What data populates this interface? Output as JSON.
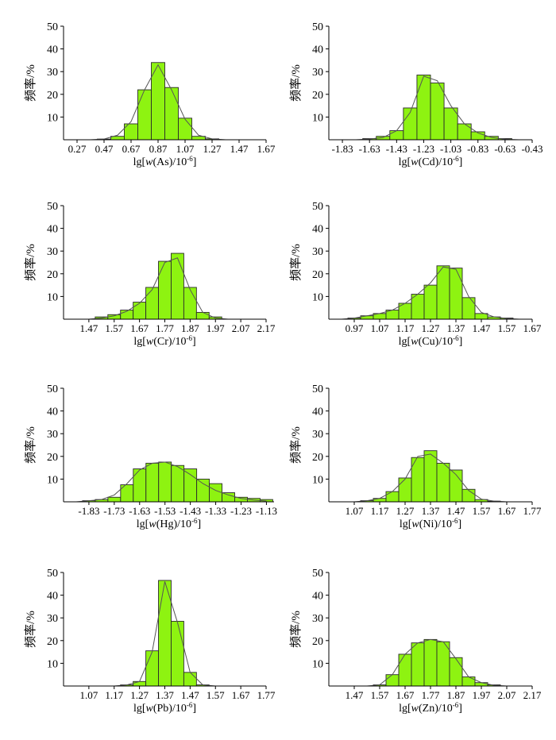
{
  "figure": {
    "panel_count": 8
  },
  "chart_data": [
    {
      "type": "bar",
      "ylabel": "频率/%",
      "xlabel_prefix": "lg[",
      "xlabel_italic": "w",
      "xlabel_element": "(As)/10",
      "xlabel_exp": "-6",
      "xlabel_suffix": "]",
      "ylim": [
        0,
        50
      ],
      "yticks": [
        10,
        20,
        30,
        40,
        50
      ],
      "xlim": [
        0.17,
        1.67
      ],
      "xticks": [
        "0.27",
        "0.47",
        "0.67",
        "0.87",
        "1.07",
        "1.27",
        "1.47",
        "1.67"
      ],
      "bin_width": 0.1,
      "bin_centers": [
        0.47,
        0.57,
        0.67,
        0.77,
        0.87,
        0.97,
        1.07,
        1.17,
        1.27
      ],
      "values": [
        0.3,
        1.5,
        7,
        22,
        34,
        23,
        9.5,
        1.5,
        0.4
      ],
      "curve_x": [
        0.37,
        0.47,
        0.57,
        0.67,
        0.77,
        0.87,
        0.97,
        1.07,
        1.17,
        1.27,
        1.37
      ],
      "curve_y": [
        0,
        0.3,
        2,
        8,
        22,
        33,
        22,
        9,
        2,
        0.4,
        0
      ],
      "colors": {
        "bar": "#8ef311",
        "edge": "#2a2a2a",
        "line": "#555555"
      }
    },
    {
      "type": "bar",
      "ylabel": "频率/%",
      "xlabel_prefix": "lg[",
      "xlabel_italic": "w",
      "xlabel_element": "(Cd)/10",
      "xlabel_exp": "-6",
      "xlabel_suffix": "]",
      "ylim": [
        0,
        50
      ],
      "yticks": [
        10,
        20,
        30,
        40,
        50
      ],
      "xlim": [
        -1.93,
        -0.43
      ],
      "xticks": [
        "-1.83",
        "-1.63",
        "-1.43",
        "-1.23",
        "-1.03",
        "-0.83",
        "-0.63",
        "-0.43"
      ],
      "bin_width": 0.1,
      "bin_centers": [
        -1.63,
        -1.53,
        -1.43,
        -1.33,
        -1.23,
        -1.13,
        -1.03,
        -0.93,
        -0.83,
        -0.73,
        -0.63
      ],
      "values": [
        0.5,
        1.5,
        4,
        14,
        28.5,
        25,
        14,
        7,
        3.5,
        1.5,
        0.5
      ],
      "curve_x": [
        -1.73,
        -1.63,
        -1.53,
        -1.43,
        -1.33,
        -1.23,
        -1.13,
        -1.03,
        -0.93,
        -0.83,
        -0.73,
        -0.63,
        -0.53
      ],
      "curve_y": [
        0,
        0.3,
        1,
        4,
        12,
        28,
        26,
        15,
        7,
        3,
        1,
        0.2,
        0
      ],
      "colors": {
        "bar": "#8ef311",
        "edge": "#2a2a2a",
        "line": "#555555"
      }
    },
    {
      "type": "bar",
      "ylabel": "频率/%",
      "xlabel_prefix": "lg[",
      "xlabel_italic": "w",
      "xlabel_element": "(Cr)/10",
      "xlabel_exp": "-6",
      "xlabel_suffix": "]",
      "ylim": [
        0,
        50
      ],
      "yticks": [
        10,
        20,
        30,
        40,
        50
      ],
      "xlim": [
        1.37,
        2.17
      ],
      "xticks": [
        "1.47",
        "1.57",
        "1.67",
        "1.77",
        "1.87",
        "1.97",
        "2.07",
        "2.17"
      ],
      "bin_width": 0.05,
      "bin_centers": [
        1.52,
        1.57,
        1.62,
        1.67,
        1.72,
        1.77,
        1.82,
        1.87,
        1.92,
        1.97
      ],
      "values": [
        1,
        2,
        4,
        7.5,
        14,
        25.5,
        29,
        14,
        3,
        1
      ],
      "curve_x": [
        1.47,
        1.52,
        1.57,
        1.62,
        1.67,
        1.72,
        1.77,
        1.82,
        1.87,
        1.92,
        1.97,
        2.02
      ],
      "curve_y": [
        0,
        0.5,
        1.5,
        3.5,
        7,
        13,
        25,
        27,
        13,
        3,
        0.5,
        0
      ],
      "colors": {
        "bar": "#8ef311",
        "edge": "#2a2a2a",
        "line": "#555555"
      }
    },
    {
      "type": "bar",
      "ylabel": "频率/%",
      "xlabel_prefix": "lg[",
      "xlabel_italic": "w",
      "xlabel_element": "(Cu)/10",
      "xlabel_exp": "-6",
      "xlabel_suffix": "]",
      "ylim": [
        0,
        50
      ],
      "yticks": [
        10,
        20,
        30,
        40,
        50
      ],
      "xlim": [
        0.87,
        1.67
      ],
      "xticks": [
        "0.97",
        "1.07",
        "1.17",
        "1.27",
        "1.37",
        "1.47",
        "1.57",
        "1.67"
      ],
      "bin_width": 0.05,
      "bin_centers": [
        0.97,
        1.02,
        1.07,
        1.12,
        1.17,
        1.22,
        1.27,
        1.32,
        1.37,
        1.42,
        1.47,
        1.52,
        1.57
      ],
      "values": [
        0.5,
        1.5,
        2.5,
        4,
        7,
        11,
        15,
        23.5,
        22.5,
        9.5,
        2.5,
        1,
        0.5
      ],
      "curve_x": [
        0.92,
        0.97,
        1.02,
        1.07,
        1.12,
        1.17,
        1.22,
        1.27,
        1.32,
        1.37,
        1.42,
        1.47,
        1.52,
        1.57,
        1.62
      ],
      "curve_y": [
        0,
        0.5,
        1.5,
        2.5,
        4,
        7,
        11,
        16,
        23,
        22,
        10,
        3,
        1,
        0.3,
        0
      ],
      "colors": {
        "bar": "#8ef311",
        "edge": "#2a2a2a",
        "line": "#555555"
      }
    },
    {
      "type": "bar",
      "ylabel": "频率/%",
      "xlabel_prefix": "lg[",
      "xlabel_italic": "w",
      "xlabel_element": "(Hg)/10",
      "xlabel_exp": "-6",
      "xlabel_suffix": "]",
      "ylim": [
        0,
        50
      ],
      "yticks": [
        10,
        20,
        30,
        40,
        50
      ],
      "xlim": [
        -1.93,
        -1.1
      ],
      "xticks": [
        "-1.83",
        "-1.73",
        "-1.63",
        "-1.53",
        "-1.43",
        "-1.33",
        "-1.23",
        "-1.13"
      ],
      "bin_width": 0.05,
      "bin_centers": [
        -1.83,
        -1.78,
        -1.73,
        -1.68,
        -1.63,
        -1.58,
        -1.53,
        -1.48,
        -1.43,
        -1.38,
        -1.33,
        -1.28,
        -1.23,
        -1.18,
        -1.13
      ],
      "values": [
        0.5,
        1,
        2,
        7.5,
        14.5,
        17,
        17.5,
        16,
        14.5,
        10,
        8,
        4,
        2,
        1.5,
        1
      ],
      "curve_x": [
        -1.88,
        -1.83,
        -1.78,
        -1.73,
        -1.68,
        -1.63,
        -1.58,
        -1.53,
        -1.48,
        -1.43,
        -1.38,
        -1.33,
        -1.28,
        -1.23,
        -1.18,
        -1.13
      ],
      "curve_y": [
        0,
        0.5,
        1,
        3,
        8,
        14,
        17,
        17.5,
        15.5,
        12,
        8,
        5,
        3,
        1.5,
        0.8,
        0.3
      ],
      "colors": {
        "bar": "#8ef311",
        "edge": "#2a2a2a",
        "line": "#555555"
      }
    },
    {
      "type": "bar",
      "ylabel": "频率/%",
      "xlabel_prefix": "lg[",
      "xlabel_italic": "w",
      "xlabel_element": "(Ni)/10",
      "xlabel_exp": "-6",
      "xlabel_suffix": "]",
      "ylim": [
        0,
        50
      ],
      "yticks": [
        10,
        20,
        30,
        40,
        50
      ],
      "xlim": [
        0.97,
        1.77
      ],
      "xticks": [
        "1.07",
        "1.17",
        "1.27",
        "1.37",
        "1.47",
        "1.57",
        "1.67",
        "1.77"
      ],
      "bin_width": 0.05,
      "bin_centers": [
        1.12,
        1.17,
        1.22,
        1.27,
        1.32,
        1.37,
        1.42,
        1.47,
        1.52,
        1.57,
        1.62
      ],
      "values": [
        0.5,
        1.5,
        4.5,
        10.5,
        19.5,
        22.5,
        17,
        14,
        5.5,
        1,
        0.3
      ],
      "curve_x": [
        1.07,
        1.12,
        1.17,
        1.22,
        1.27,
        1.32,
        1.37,
        1.42,
        1.47,
        1.52,
        1.57,
        1.62,
        1.67
      ],
      "curve_y": [
        0,
        0.5,
        1.5,
        4.5,
        10,
        20,
        21,
        17,
        12,
        5,
        1.2,
        0.3,
        0
      ],
      "colors": {
        "bar": "#8ef311",
        "edge": "#2a2a2a",
        "line": "#555555"
      }
    },
    {
      "type": "bar",
      "ylabel": "频率/%",
      "xlabel_prefix": "lg[",
      "xlabel_italic": "w",
      "xlabel_element": "(Pb)/10",
      "xlabel_exp": "-6",
      "xlabel_suffix": "]",
      "ylim": [
        0,
        50
      ],
      "yticks": [
        10,
        20,
        30,
        40,
        50
      ],
      "xlim": [
        0.97,
        1.77
      ],
      "xticks": [
        "1.07",
        "1.17",
        "1.27",
        "1.37",
        "1.47",
        "1.57",
        "1.67",
        "1.77"
      ],
      "bin_width": 0.05,
      "bin_centers": [
        1.22,
        1.27,
        1.32,
        1.37,
        1.42,
        1.47,
        1.52
      ],
      "values": [
        0.5,
        2,
        15.5,
        46.5,
        28.5,
        6,
        0.5
      ],
      "curve_x": [
        1.17,
        1.22,
        1.27,
        1.32,
        1.37,
        1.42,
        1.47,
        1.52,
        1.57
      ],
      "curve_y": [
        0,
        0.5,
        2,
        15,
        46,
        28,
        6,
        0.5,
        0
      ],
      "colors": {
        "bar": "#8ef311",
        "edge": "#2a2a2a",
        "line": "#555555"
      }
    },
    {
      "type": "bar",
      "ylabel": "频率/%",
      "xlabel_prefix": "lg[",
      "xlabel_italic": "w",
      "xlabel_element": "(Zn)/10",
      "xlabel_exp": "-6",
      "xlabel_suffix": "]",
      "ylim": [
        0,
        50
      ],
      "yticks": [
        10,
        20,
        30,
        40,
        50
      ],
      "xlim": [
        1.37,
        2.17
      ],
      "xticks": [
        "1.47",
        "1.57",
        "1.67",
        "1.77",
        "1.87",
        "1.97",
        "2.07",
        "2.17"
      ],
      "bin_width": 0.05,
      "bin_centers": [
        1.57,
        1.62,
        1.67,
        1.72,
        1.77,
        1.82,
        1.87,
        1.92,
        1.97,
        2.02
      ],
      "values": [
        0.5,
        5,
        14,
        19,
        20.5,
        19.5,
        12.5,
        4,
        1.5,
        0.5
      ],
      "curve_x": [
        1.52,
        1.57,
        1.62,
        1.67,
        1.72,
        1.77,
        1.82,
        1.87,
        1.92,
        1.97,
        2.02,
        2.07
      ],
      "curve_y": [
        0,
        0.5,
        5,
        14,
        19,
        20.5,
        19.5,
        12,
        4,
        1.5,
        0.3,
        0
      ],
      "colors": {
        "bar": "#8ef311",
        "edge": "#2a2a2a",
        "line": "#555555"
      }
    }
  ]
}
